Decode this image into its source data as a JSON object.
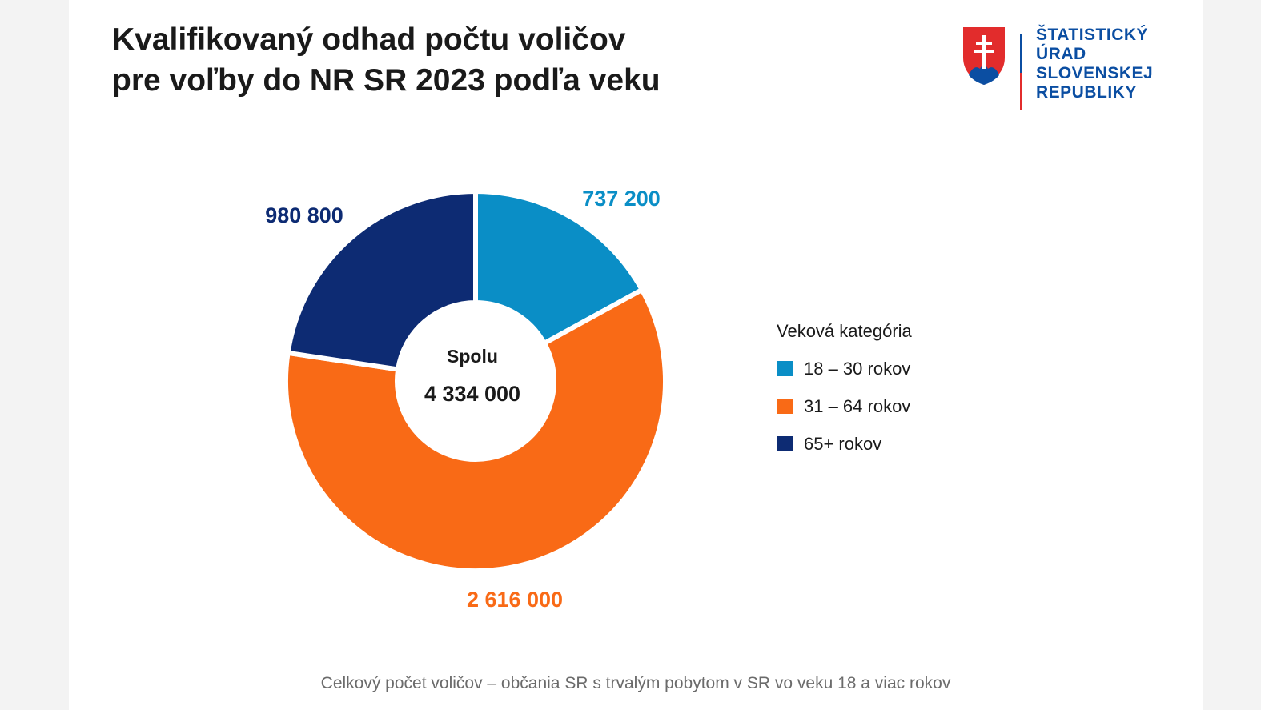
{
  "title_lines": [
    "Kvalifikovaný odhad počtu voličov",
    "pre voľby do NR SR 2023 podľa veku"
  ],
  "logo": {
    "lines": [
      "ŠTATISTICKÝ",
      "ÚRAD",
      "SLOVENSKEJ",
      "REPUBLIKY"
    ],
    "colors": {
      "blue": "#0b4ea2",
      "red": "#e22c2c"
    }
  },
  "center": {
    "label": "Spolu",
    "value": "4 334 000"
  },
  "legend": {
    "title": "Veková kategória"
  },
  "footnote": "Celkový počet voličov – občania SR s trvalým pobytom v SR vo veku 18 a viac rokov",
  "chart_data": {
    "type": "pie",
    "variant": "donut",
    "title": "Kvalifikovaný odhad počtu voličov pre voľby do NR SR 2023 podľa veku",
    "categories": [
      "18 – 30 rokov",
      "31 – 64 rokov",
      "65+ rokov"
    ],
    "values": [
      737200,
      2616000,
      980800
    ],
    "value_labels": [
      "737 200",
      "2 616 000",
      "980 800"
    ],
    "colors": [
      "#0a8ec6",
      "#f96a16",
      "#0d2b73"
    ],
    "total": 4334000,
    "total_label": "4 334 000",
    "legend_position": "right"
  }
}
